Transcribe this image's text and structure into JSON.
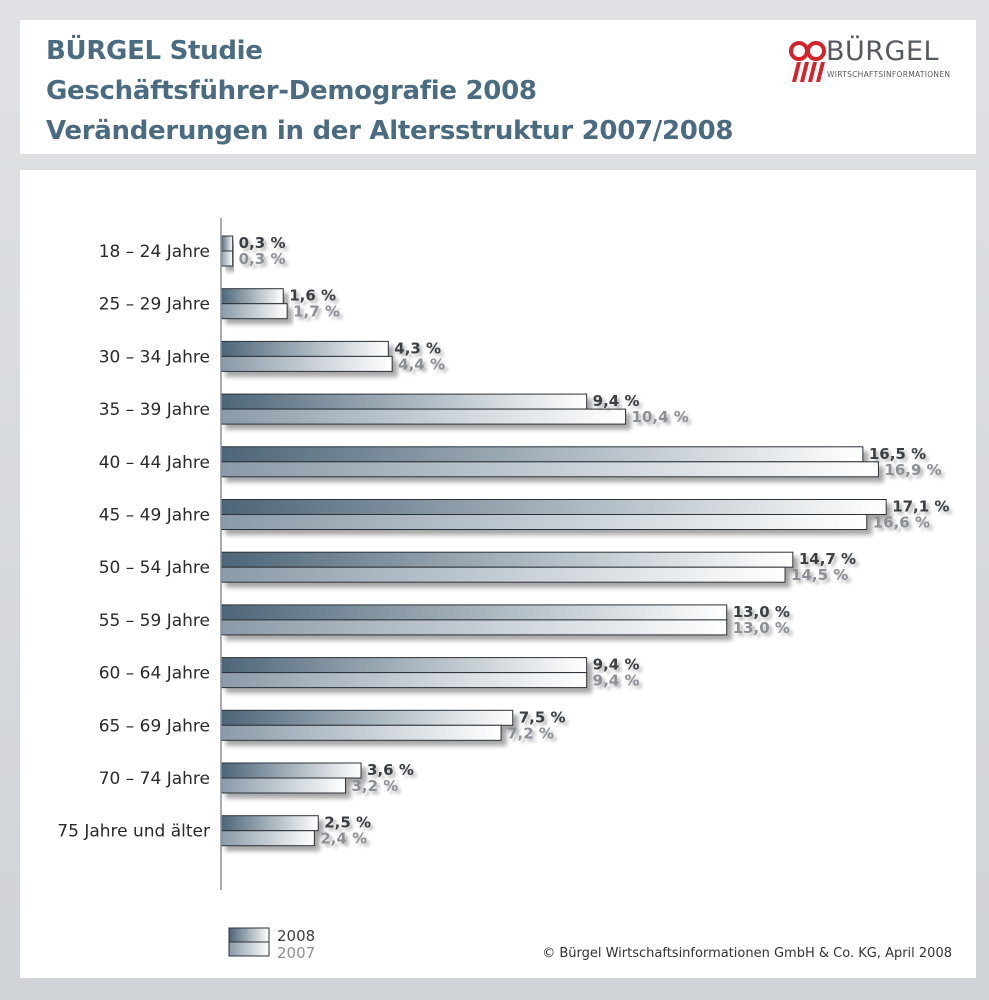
{
  "header": {
    "title_line1": "BÜRGEL Studie",
    "title_line2": "Geschäftsführer-Demografie 2008",
    "title_line3": "Veränderungen in der Altersstruktur 2007/2008"
  },
  "logo": {
    "name": "BÜRGEL",
    "subtitle": "WIRTSCHAFTSINFORMATIONEN",
    "accent_color": "#d4232b"
  },
  "colors": {
    "title": "#4b6b80",
    "bar_2008_dark": "#4d6578",
    "bar_2007_dark": "#9aa8b4",
    "bar_light": "#ffffff"
  },
  "chart_data": {
    "type": "bar",
    "orientation": "horizontal",
    "categories": [
      "18 – 24 Jahre",
      "25 – 29 Jahre",
      "30 – 34 Jahre",
      "35 – 39 Jahre",
      "40 – 44 Jahre",
      "45 – 49 Jahre",
      "50 – 54 Jahre",
      "55 – 59 Jahre",
      "60 – 64 Jahre",
      "65 – 69 Jahre",
      "70 – 74 Jahre",
      "75 Jahre und älter"
    ],
    "series": [
      {
        "name": "2008",
        "values": [
          0.3,
          1.6,
          4.3,
          9.4,
          16.5,
          17.1,
          14.7,
          13.0,
          9.4,
          7.5,
          3.6,
          2.5
        ],
        "labels": [
          "0,3 %",
          "1,6 %",
          "4,3 %",
          "9,4 %",
          "16,5 %",
          "17,1 %",
          "14,7 %",
          "13,0 %",
          "9,4 %",
          "7,5 %",
          "3,6 %",
          "2,5 %"
        ]
      },
      {
        "name": "2007",
        "values": [
          0.3,
          1.7,
          4.4,
          10.4,
          16.9,
          16.6,
          14.5,
          13.0,
          9.4,
          7.2,
          3.2,
          2.4
        ],
        "labels": [
          "0,3 %",
          "1,7 %",
          "4,4 %",
          "10,4 %",
          "16,9 %",
          "16,6 %",
          "14,5 %",
          "13,0 %",
          "9,4 %",
          "7,2 %",
          "3,2 %",
          "2,4 %"
        ]
      }
    ],
    "unit": "%",
    "xlim": [
      0,
      17.5
    ],
    "grid": false,
    "legend": "bottom-left"
  },
  "footer": {
    "copyright": "© Bürgel Wirtschaftsinformationen GmbH & Co. KG, April 2008"
  }
}
